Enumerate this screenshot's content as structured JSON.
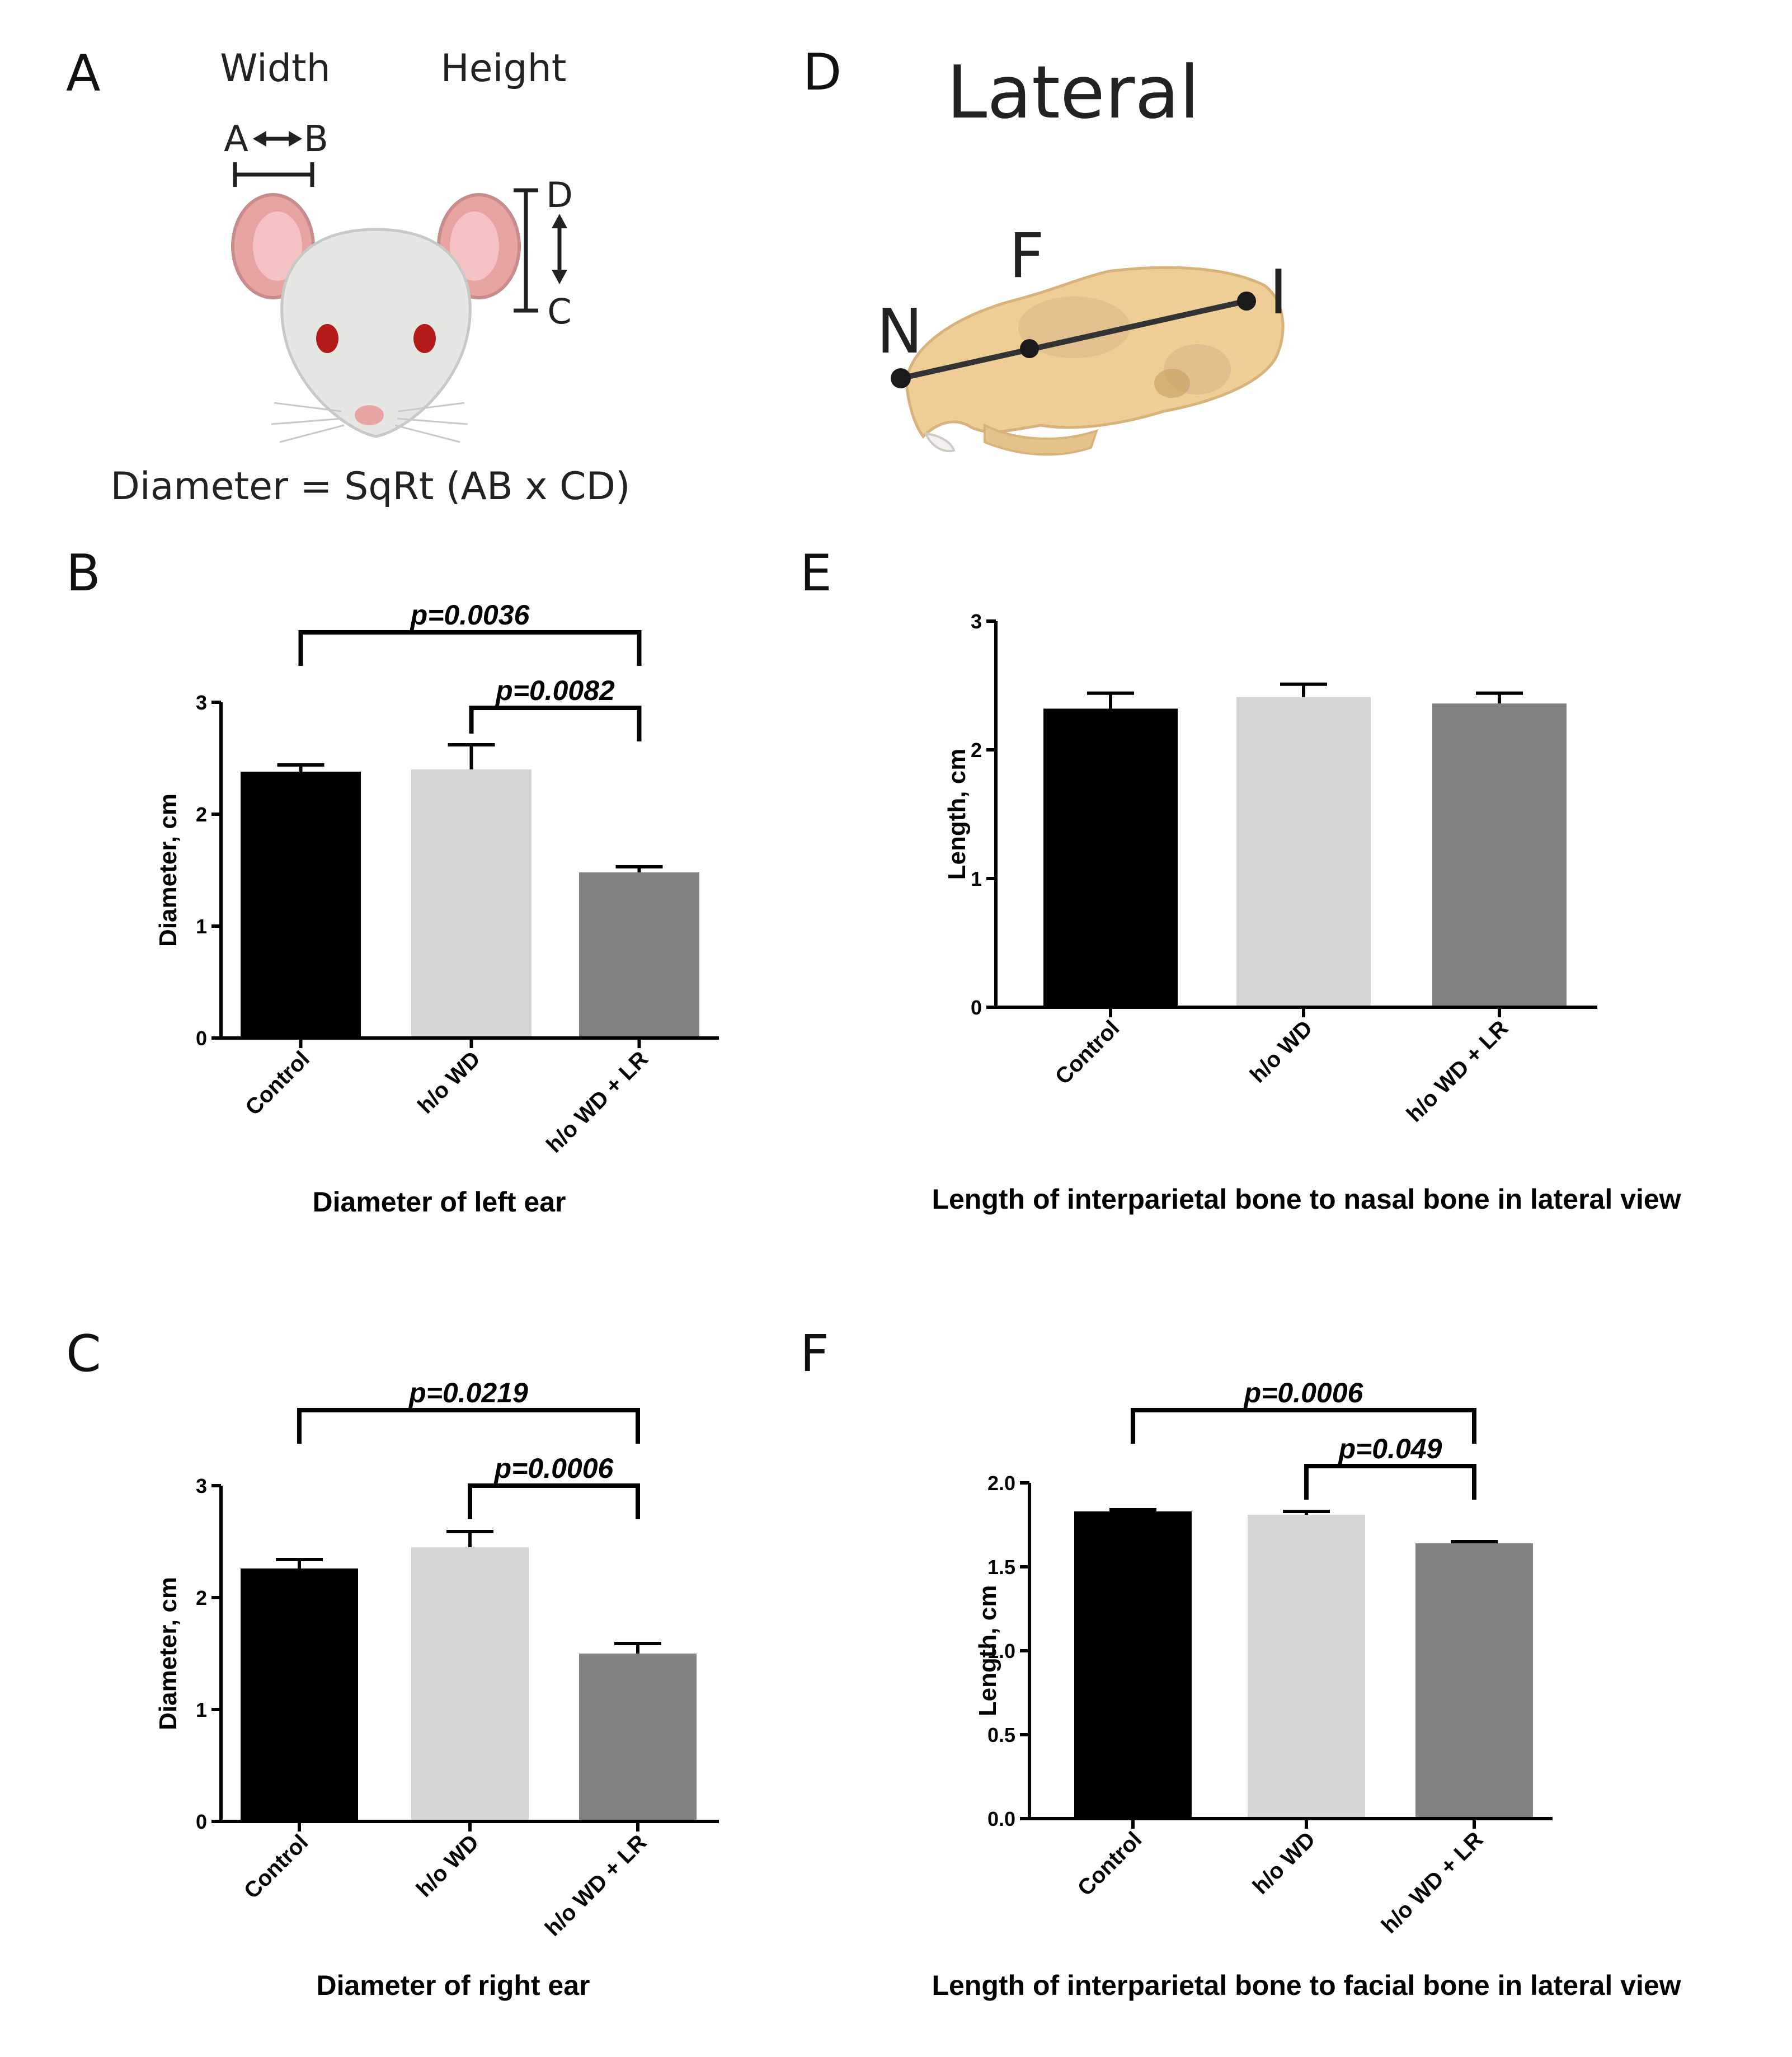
{
  "panels": {
    "A": {
      "letter": "A",
      "width_label": "Width",
      "height_label": "Height",
      "point_a": "A",
      "point_b": "B",
      "point_c": "C",
      "point_d": "D",
      "formula": "Diameter = SqRt (AB x CD)"
    },
    "D": {
      "letter": "D",
      "title": "Lateral",
      "landmark_n": "N",
      "landmark_f": "F",
      "landmark_i": "I"
    },
    "B": {
      "letter": "B"
    },
    "C": {
      "letter": "C"
    },
    "E": {
      "letter": "E"
    },
    "F": {
      "letter": "F"
    }
  },
  "colors": {
    "control": "#000000",
    "ho_wd": "#d6d6d6",
    "ho_wd_lr": "#828282",
    "axis": "#000000",
    "mouse_fur": "#e6e6e2",
    "mouse_ear": "#e8a3a3",
    "mouse_eye": "#b31b1b",
    "skull": "#eecd96",
    "skull_shade": "#d8b27a"
  },
  "chart_data": [
    {
      "id": "B",
      "type": "bar",
      "categories": [
        "Control",
        "h/o WD",
        "h/o WD + LR"
      ],
      "values": [
        2.38,
        2.4,
        1.48
      ],
      "errors": [
        0.06,
        0.22,
        0.05
      ],
      "ylim": [
        0,
        3
      ],
      "yticks": [
        "0",
        "1",
        "2",
        "3"
      ],
      "ylabel": "Diameter, cm",
      "caption": "Diameter of left ear",
      "comparisons": [
        {
          "from": 0,
          "to": 2,
          "label": "p=0.0036"
        },
        {
          "from": 1,
          "to": 2,
          "label": "p=0.0082"
        }
      ]
    },
    {
      "id": "C",
      "type": "bar",
      "categories": [
        "Control",
        "h/o WD",
        "h/o WD + LR"
      ],
      "values": [
        2.26,
        2.45,
        1.5
      ],
      "errors": [
        0.08,
        0.14,
        0.09
      ],
      "ylim": [
        0,
        3
      ],
      "yticks": [
        "0",
        "1",
        "2",
        "3"
      ],
      "ylabel": "Diameter, cm",
      "caption": "Diameter of right ear",
      "comparisons": [
        {
          "from": 0,
          "to": 2,
          "label": "p=0.0219"
        },
        {
          "from": 1,
          "to": 2,
          "label": "p=0.0006"
        }
      ]
    },
    {
      "id": "E",
      "type": "bar",
      "categories": [
        "Control",
        "h/o WD",
        "h/o WD + LR"
      ],
      "values": [
        2.32,
        2.41,
        2.36
      ],
      "errors": [
        0.12,
        0.1,
        0.08
      ],
      "ylim": [
        0,
        3
      ],
      "yticks": [
        "0",
        "1",
        "2",
        "3"
      ],
      "ylabel": "Length, cm",
      "caption": "Length of interparietal bone to nasal bone in lateral view",
      "comparisons": []
    },
    {
      "id": "F",
      "type": "bar",
      "categories": [
        "Control",
        "h/o WD",
        "h/o WD + LR"
      ],
      "values": [
        1.83,
        1.81,
        1.64
      ],
      "errors": [
        0.01,
        0.02,
        0.01
      ],
      "ylim": [
        0,
        2.0
      ],
      "yticks": [
        "0.0",
        "0.5",
        "1.0",
        "1.5",
        "2.0"
      ],
      "ylabel": "Length, cm",
      "caption": "Length of interparietal bone to facial bone in lateral view",
      "comparisons": [
        {
          "from": 0,
          "to": 2,
          "label": "p=0.0006"
        },
        {
          "from": 1,
          "to": 2,
          "label": "p=0.049"
        }
      ]
    }
  ]
}
